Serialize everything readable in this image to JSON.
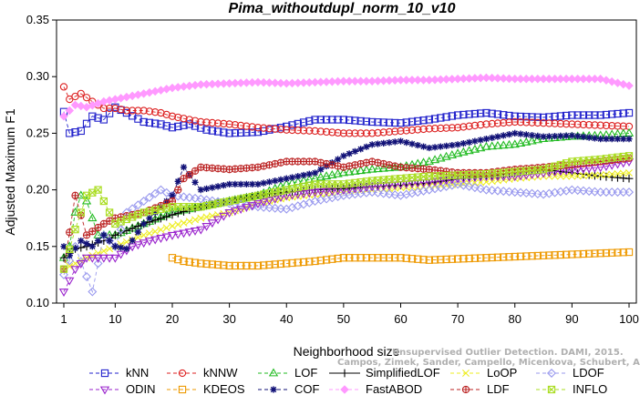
{
  "chart_data": {
    "type": "line",
    "title": "Pima_withoutdupl_norm_10_v10",
    "xlabel": "Neighborhood size",
    "ylabel": "Adjusted Maximum F1",
    "xlim": [
      1,
      100
    ],
    "ylim": [
      0.1,
      0.35
    ],
    "xticks": [
      "1",
      "10",
      "20",
      "30",
      "40",
      "50",
      "60",
      "70",
      "80",
      "90",
      "100"
    ],
    "yticks": [
      "0.10",
      "0.15",
      "0.20",
      "0.25",
      "0.30",
      "0.35"
    ],
    "watermark": [
      "Unsupervised Outlier Detection. DAMI, 2015.",
      "Campos, Zimek, Sander, Campello, Micenkova, Schubert, Assent, Houle"
    ],
    "series": [
      {
        "name": "kNN",
        "color": "#2222cc",
        "marker": "square",
        "lineStyle": "dashed",
        "points": [
          [
            1,
            0.269
          ],
          [
            2,
            0.25
          ],
          [
            4,
            0.252
          ],
          [
            6,
            0.265
          ],
          [
            8,
            0.262
          ],
          [
            10,
            0.273
          ],
          [
            12,
            0.268
          ],
          [
            15,
            0.26
          ],
          [
            18,
            0.258
          ],
          [
            20,
            0.255
          ],
          [
            23,
            0.258
          ],
          [
            26,
            0.253
          ],
          [
            30,
            0.25
          ],
          [
            35,
            0.251
          ],
          [
            40,
            0.256
          ],
          [
            45,
            0.262
          ],
          [
            50,
            0.262
          ],
          [
            55,
            0.26
          ],
          [
            60,
            0.259
          ],
          [
            65,
            0.262
          ],
          [
            70,
            0.266
          ],
          [
            75,
            0.268
          ],
          [
            80,
            0.265
          ],
          [
            85,
            0.264
          ],
          [
            90,
            0.266
          ],
          [
            95,
            0.266
          ],
          [
            100,
            0.268
          ]
        ]
      },
      {
        "name": "kNNW",
        "color": "#dd2222",
        "marker": "circle",
        "lineStyle": "dashed",
        "points": [
          [
            1,
            0.291
          ],
          [
            2,
            0.28
          ],
          [
            4,
            0.285
          ],
          [
            6,
            0.278
          ],
          [
            8,
            0.272
          ],
          [
            10,
            0.272
          ],
          [
            12,
            0.27
          ],
          [
            15,
            0.27
          ],
          [
            18,
            0.268
          ],
          [
            20,
            0.265
          ],
          [
            25,
            0.26
          ],
          [
            30,
            0.258
          ],
          [
            35,
            0.255
          ],
          [
            40,
            0.253
          ],
          [
            45,
            0.252
          ],
          [
            50,
            0.25
          ],
          [
            55,
            0.25
          ],
          [
            60,
            0.252
          ],
          [
            65,
            0.254
          ],
          [
            70,
            0.255
          ],
          [
            75,
            0.258
          ],
          [
            80,
            0.26
          ],
          [
            85,
            0.259
          ],
          [
            90,
            0.258
          ],
          [
            95,
            0.257
          ],
          [
            100,
            0.256
          ]
        ]
      },
      {
        "name": "LOF",
        "color": "#22bb22",
        "marker": "triangle-up",
        "lineStyle": "dashed",
        "points": [
          [
            1,
            0.14
          ],
          [
            2,
            0.15
          ],
          [
            3,
            0.18
          ],
          [
            4,
            0.195
          ],
          [
            5,
            0.19
          ],
          [
            7,
            0.16
          ],
          [
            10,
            0.16
          ],
          [
            15,
            0.17
          ],
          [
            20,
            0.18
          ],
          [
            25,
            0.185
          ],
          [
            30,
            0.19
          ],
          [
            35,
            0.195
          ],
          [
            40,
            0.205
          ],
          [
            45,
            0.21
          ],
          [
            50,
            0.215
          ],
          [
            55,
            0.218
          ],
          [
            60,
            0.22
          ],
          [
            65,
            0.225
          ],
          [
            70,
            0.232
          ],
          [
            75,
            0.238
          ],
          [
            80,
            0.24
          ],
          [
            85,
            0.245
          ],
          [
            90,
            0.247
          ],
          [
            95,
            0.248
          ],
          [
            100,
            0.25
          ]
        ]
      },
      {
        "name": "SimplifiedLOF",
        "color": "#000000",
        "marker": "plus",
        "lineStyle": "solid",
        "points": [
          [
            1,
            0.14
          ],
          [
            3,
            0.148
          ],
          [
            5,
            0.15
          ],
          [
            8,
            0.155
          ],
          [
            10,
            0.16
          ],
          [
            15,
            0.17
          ],
          [
            20,
            0.178
          ],
          [
            25,
            0.185
          ],
          [
            30,
            0.19
          ],
          [
            35,
            0.195
          ],
          [
            40,
            0.198
          ],
          [
            45,
            0.2
          ],
          [
            50,
            0.201
          ],
          [
            55,
            0.203
          ],
          [
            60,
            0.204
          ],
          [
            65,
            0.206
          ],
          [
            70,
            0.21
          ],
          [
            75,
            0.212
          ],
          [
            80,
            0.215
          ],
          [
            85,
            0.218
          ],
          [
            90,
            0.215
          ],
          [
            95,
            0.212
          ],
          [
            100,
            0.21
          ]
        ]
      },
      {
        "name": "LoOP",
        "color": "#eeee22",
        "marker": "x",
        "lineStyle": "dashed",
        "points": [
          [
            1,
            0.13
          ],
          [
            5,
            0.14
          ],
          [
            10,
            0.15
          ],
          [
            15,
            0.16
          ],
          [
            20,
            0.168
          ],
          [
            25,
            0.175
          ],
          [
            30,
            0.18
          ],
          [
            35,
            0.188
          ],
          [
            40,
            0.193
          ],
          [
            45,
            0.196
          ],
          [
            50,
            0.198
          ],
          [
            55,
            0.2
          ],
          [
            60,
            0.202
          ],
          [
            65,
            0.203
          ],
          [
            70,
            0.205
          ],
          [
            75,
            0.207
          ],
          [
            80,
            0.21
          ],
          [
            85,
            0.212
          ],
          [
            90,
            0.212
          ],
          [
            95,
            0.213
          ],
          [
            100,
            0.215
          ]
        ]
      },
      {
        "name": "LDOF",
        "color": "#9999ee",
        "marker": "diamond",
        "lineStyle": "dashed",
        "points": [
          [
            1,
            0.125
          ],
          [
            3,
            0.15
          ],
          [
            6,
            0.11
          ],
          [
            8,
            0.16
          ],
          [
            10,
            0.15
          ],
          [
            12,
            0.18
          ],
          [
            15,
            0.19
          ],
          [
            18,
            0.2
          ],
          [
            20,
            0.195
          ],
          [
            25,
            0.192
          ],
          [
            30,
            0.188
          ],
          [
            35,
            0.185
          ],
          [
            40,
            0.183
          ],
          [
            45,
            0.19
          ],
          [
            50,
            0.195
          ],
          [
            55,
            0.198
          ],
          [
            60,
            0.195
          ],
          [
            65,
            0.2
          ],
          [
            70,
            0.205
          ],
          [
            75,
            0.2
          ],
          [
            80,
            0.198
          ],
          [
            85,
            0.196
          ],
          [
            90,
            0.2
          ],
          [
            95,
            0.198
          ],
          [
            100,
            0.198
          ]
        ]
      },
      {
        "name": "ODIN",
        "color": "#9922cc",
        "marker": "triangle-down",
        "lineStyle": "dashed",
        "points": [
          [
            1,
            0.11
          ],
          [
            3,
            0.13
          ],
          [
            5,
            0.14
          ],
          [
            7,
            0.14
          ],
          [
            10,
            0.14
          ],
          [
            13,
            0.15
          ],
          [
            16,
            0.155
          ],
          [
            20,
            0.16
          ],
          [
            25,
            0.165
          ],
          [
            30,
            0.18
          ],
          [
            35,
            0.188
          ],
          [
            40,
            0.195
          ],
          [
            45,
            0.198
          ],
          [
            50,
            0.2
          ],
          [
            55,
            0.203
          ],
          [
            60,
            0.205
          ],
          [
            65,
            0.207
          ],
          [
            70,
            0.21
          ],
          [
            75,
            0.212
          ],
          [
            80,
            0.212
          ],
          [
            85,
            0.215
          ],
          [
            90,
            0.218
          ],
          [
            95,
            0.22
          ],
          [
            100,
            0.225
          ]
        ]
      },
      {
        "name": "KDEOS",
        "color": "#ee9900",
        "marker": "square",
        "lineStyle": "dashed",
        "points": [
          [
            20,
            0.14
          ],
          [
            22,
            0.137
          ],
          [
            25,
            0.135
          ],
          [
            30,
            0.133
          ],
          [
            35,
            0.133
          ],
          [
            40,
            0.135
          ],
          [
            45,
            0.137
          ],
          [
            50,
            0.14
          ],
          [
            55,
            0.14
          ],
          [
            60,
            0.14
          ],
          [
            65,
            0.138
          ],
          [
            70,
            0.139
          ],
          [
            75,
            0.14
          ],
          [
            80,
            0.141
          ],
          [
            85,
            0.142
          ],
          [
            90,
            0.143
          ],
          [
            95,
            0.144
          ],
          [
            100,
            0.145
          ]
        ]
      },
      {
        "name": "COF",
        "color": "#111177",
        "marker": "asterisk",
        "lineStyle": "dashed",
        "points": [
          [
            1,
            0.15
          ],
          [
            2,
            0.142
          ],
          [
            4,
            0.155
          ],
          [
            6,
            0.15
          ],
          [
            8,
            0.16
          ],
          [
            10,
            0.15
          ],
          [
            12,
            0.148
          ],
          [
            15,
            0.17
          ],
          [
            20,
            0.195
          ],
          [
            22,
            0.22
          ],
          [
            25,
            0.2
          ],
          [
            30,
            0.205
          ],
          [
            35,
            0.205
          ],
          [
            40,
            0.21
          ],
          [
            45,
            0.215
          ],
          [
            50,
            0.23
          ],
          [
            55,
            0.24
          ],
          [
            60,
            0.243
          ],
          [
            65,
            0.237
          ],
          [
            70,
            0.24
          ],
          [
            75,
            0.245
          ],
          [
            80,
            0.25
          ],
          [
            85,
            0.247
          ],
          [
            90,
            0.248
          ],
          [
            95,
            0.245
          ],
          [
            100,
            0.245
          ]
        ]
      },
      {
        "name": "FastABOD",
        "color": "#ff99ff",
        "marker": "diamond-filled",
        "lineStyle": "dashed",
        "points": [
          [
            1,
            0.265
          ],
          [
            3,
            0.275
          ],
          [
            5,
            0.273
          ],
          [
            8,
            0.278
          ],
          [
            10,
            0.28
          ],
          [
            15,
            0.285
          ],
          [
            20,
            0.29
          ],
          [
            25,
            0.293
          ],
          [
            30,
            0.294
          ],
          [
            35,
            0.295
          ],
          [
            40,
            0.294
          ],
          [
            45,
            0.295
          ],
          [
            50,
            0.296
          ],
          [
            55,
            0.296
          ],
          [
            60,
            0.297
          ],
          [
            65,
            0.297
          ],
          [
            70,
            0.298
          ],
          [
            75,
            0.299
          ],
          [
            80,
            0.298
          ],
          [
            85,
            0.298
          ],
          [
            90,
            0.298
          ],
          [
            95,
            0.298
          ],
          [
            100,
            0.292
          ]
        ]
      },
      {
        "name": "LDF",
        "color": "#bb2222",
        "marker": "circle-plus",
        "lineStyle": "dashed",
        "points": [
          [
            1,
            0.13
          ],
          [
            3,
            0.195
          ],
          [
            5,
            0.16
          ],
          [
            8,
            0.17
          ],
          [
            10,
            0.175
          ],
          [
            15,
            0.18
          ],
          [
            20,
            0.19
          ],
          [
            22,
            0.21
          ],
          [
            25,
            0.22
          ],
          [
            30,
            0.218
          ],
          [
            35,
            0.22
          ],
          [
            40,
            0.225
          ],
          [
            45,
            0.225
          ],
          [
            50,
            0.22
          ],
          [
            55,
            0.225
          ],
          [
            60,
            0.22
          ],
          [
            65,
            0.218
          ],
          [
            70,
            0.215
          ],
          [
            75,
            0.215
          ],
          [
            80,
            0.218
          ],
          [
            85,
            0.22
          ],
          [
            90,
            0.222
          ],
          [
            95,
            0.225
          ],
          [
            100,
            0.228
          ]
        ]
      },
      {
        "name": "INFLO",
        "color": "#aadd22",
        "marker": "x-box",
        "lineStyle": "dashed",
        "points": [
          [
            1,
            0.13
          ],
          [
            3,
            0.165
          ],
          [
            5,
            0.195
          ],
          [
            7,
            0.2
          ],
          [
            10,
            0.17
          ],
          [
            15,
            0.18
          ],
          [
            20,
            0.185
          ],
          [
            25,
            0.185
          ],
          [
            30,
            0.19
          ],
          [
            35,
            0.195
          ],
          [
            40,
            0.2
          ],
          [
            45,
            0.205
          ],
          [
            50,
            0.205
          ],
          [
            55,
            0.208
          ],
          [
            60,
            0.21
          ],
          [
            65,
            0.212
          ],
          [
            70,
            0.213
          ],
          [
            75,
            0.214
          ],
          [
            80,
            0.216
          ],
          [
            85,
            0.218
          ],
          [
            90,
            0.225
          ],
          [
            95,
            0.227
          ],
          [
            100,
            0.23
          ]
        ]
      }
    ]
  }
}
